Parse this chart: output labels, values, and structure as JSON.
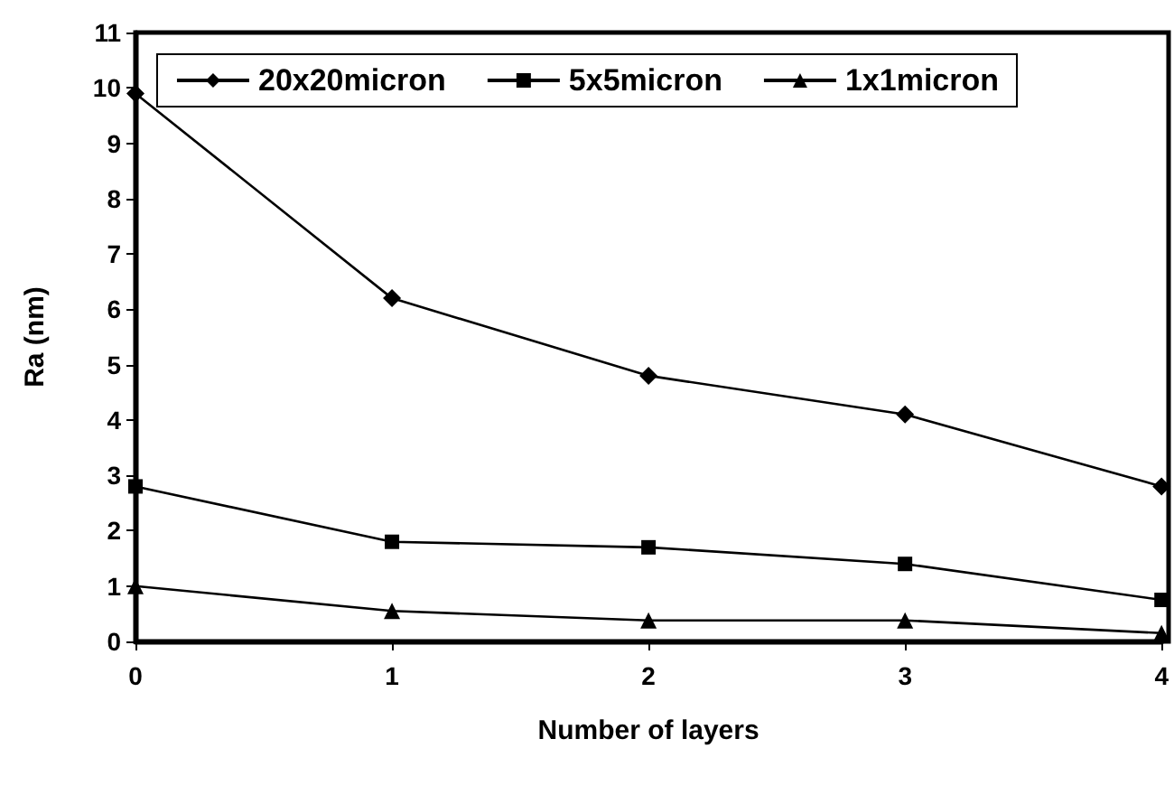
{
  "chart_data": {
    "type": "line",
    "xlabel": "Number of layers",
    "ylabel": "Ra (nm)",
    "x": [
      0,
      1,
      2,
      3,
      4
    ],
    "xlim": [
      0,
      4
    ],
    "xticks": [
      0,
      1,
      2,
      3,
      4
    ],
    "ylim": [
      0,
      11
    ],
    "yticks": [
      0,
      1,
      2,
      3,
      4,
      5,
      6,
      7,
      8,
      9,
      10,
      11
    ],
    "grid": false,
    "legend": "top",
    "line_style": "solid",
    "series": [
      {
        "name": "20x20micron",
        "color": "#000000",
        "marker": "diamond",
        "values": [
          9.9,
          6.2,
          4.8,
          4.1,
          2.8
        ]
      },
      {
        "name": "5x5micron",
        "color": "#000000",
        "marker": "square",
        "values": [
          2.8,
          1.8,
          1.7,
          1.4,
          0.75
        ]
      },
      {
        "name": "1x1micron",
        "color": "#000000",
        "marker": "triangle",
        "values": [
          1.0,
          0.55,
          0.38,
          0.38,
          0.15
        ]
      }
    ]
  }
}
